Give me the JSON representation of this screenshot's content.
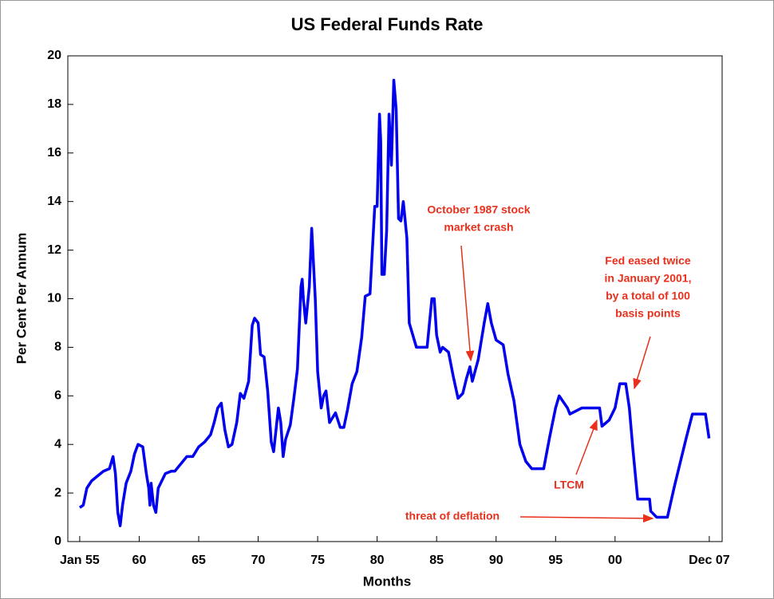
{
  "chart_data": {
    "type": "line",
    "title": "US Federal Funds Rate",
    "xlabel": "Months",
    "ylabel": "Per Cent Per Annum",
    "xlim": [
      1954,
      2009
    ],
    "xticks": [
      {
        "value": 1955,
        "label": "Jan 55"
      },
      {
        "value": 1960,
        "label": "60"
      },
      {
        "value": 1965,
        "label": "65"
      },
      {
        "value": 1970,
        "label": "70"
      },
      {
        "value": 1975,
        "label": "75"
      },
      {
        "value": 1980,
        "label": "80"
      },
      {
        "value": 1985,
        "label": "85"
      },
      {
        "value": 1990,
        "label": "90"
      },
      {
        "value": 1995,
        "label": "95"
      },
      {
        "value": 2000,
        "label": "00"
      },
      {
        "value": 2007.92,
        "label": "Dec 07"
      }
    ],
    "ylim": [
      0,
      20
    ],
    "yticks": [
      0,
      2,
      4,
      6,
      8,
      10,
      12,
      14,
      16,
      18,
      20
    ],
    "annotations": [
      {
        "lines": [
          "October 1987 stock",
          "market crash"
        ]
      },
      {
        "lines": [
          "Fed eased twice",
          "in January 2001,",
          "by a total of 100",
          "basis points"
        ]
      },
      {
        "lines": [
          "LTCM"
        ]
      },
      {
        "lines": [
          "threat of deflation"
        ]
      }
    ],
    "series": [
      {
        "name": "Federal Funds Rate",
        "color": "#0000ee",
        "x": [
          1955.0,
          1955.3,
          1955.6,
          1956.0,
          1956.5,
          1957.0,
          1957.5,
          1957.8,
          1958.0,
          1958.2,
          1958.4,
          1958.6,
          1958.9,
          1959.3,
          1959.6,
          1959.9,
          1960.3,
          1960.6,
          1960.8,
          1960.9,
          1961.0,
          1961.2,
          1961.4,
          1961.6,
          1961.9,
          1962.2,
          1962.7,
          1963.0,
          1963.5,
          1964.0,
          1964.5,
          1965.0,
          1965.5,
          1966.0,
          1966.3,
          1966.6,
          1966.9,
          1967.2,
          1967.5,
          1967.8,
          1968.2,
          1968.5,
          1968.8,
          1969.2,
          1969.5,
          1969.7,
          1970.0,
          1970.2,
          1970.5,
          1970.8,
          1971.1,
          1971.3,
          1971.7,
          1971.9,
          1972.1,
          1972.3,
          1972.7,
          1973.0,
          1973.3,
          1973.6,
          1973.7,
          1973.8,
          1974.0,
          1974.3,
          1974.5,
          1974.8,
          1975.0,
          1975.3,
          1975.5,
          1975.7,
          1976.0,
          1976.5,
          1976.9,
          1977.2,
          1977.5,
          1977.9,
          1978.3,
          1978.7,
          1979.0,
          1979.4,
          1979.8,
          1980.0,
          1980.2,
          1980.3,
          1980.4,
          1980.6,
          1980.8,
          1981.0,
          1981.2,
          1981.4,
          1981.6,
          1981.8,
          1982.0,
          1982.2,
          1982.5,
          1982.7,
          1983.0,
          1983.3,
          1984.2,
          1984.6,
          1984.8,
          1985.0,
          1985.3,
          1985.5,
          1986.0,
          1986.4,
          1986.8,
          1987.2,
          1987.5,
          1987.8,
          1988.0,
          1988.5,
          1989.0,
          1989.3,
          1989.6,
          1990.0,
          1990.6,
          1991.0,
          1991.5,
          1992.0,
          1992.5,
          1993.0,
          1994.0,
          1994.5,
          1995.0,
          1995.3,
          1996.0,
          1996.2,
          1997.2,
          1998.7,
          1998.9,
          1999.5,
          2000.0,
          2000.4,
          2000.9,
          2001.2,
          2001.5,
          2001.9,
          2002.9,
          2003.0,
          2003.5,
          2004.4,
          2005.0,
          2005.5,
          2006.0,
          2006.5,
          2007.6,
          2007.9
        ],
        "values": [
          1.4,
          1.5,
          2.2,
          2.5,
          2.7,
          2.9,
          3.0,
          3.5,
          2.8,
          1.2,
          0.65,
          1.5,
          2.4,
          2.9,
          3.6,
          4.0,
          3.9,
          2.8,
          2.2,
          1.5,
          2.4,
          1.5,
          1.2,
          2.2,
          2.5,
          2.8,
          2.9,
          2.9,
          3.2,
          3.5,
          3.5,
          3.9,
          4.1,
          4.4,
          4.9,
          5.5,
          5.7,
          4.6,
          3.9,
          4.0,
          4.9,
          6.1,
          5.9,
          6.6,
          8.9,
          9.2,
          9.0,
          7.7,
          7.6,
          6.2,
          4.1,
          3.7,
          5.5,
          4.9,
          3.5,
          4.2,
          4.8,
          5.9,
          7.1,
          10.5,
          10.8,
          10.0,
          9.0,
          10.5,
          12.9,
          10.0,
          7.0,
          5.5,
          6.0,
          6.2,
          4.9,
          5.3,
          4.7,
          4.7,
          5.4,
          6.5,
          7.0,
          8.4,
          10.1,
          10.2,
          13.8,
          13.8,
          17.6,
          16.5,
          11.0,
          11.0,
          12.8,
          17.6,
          15.5,
          19.0,
          17.8,
          13.3,
          13.2,
          14.0,
          12.5,
          9.0,
          8.5,
          8.0,
          8.0,
          10.0,
          10.0,
          8.5,
          7.8,
          8.0,
          7.8,
          6.8,
          5.9,
          6.1,
          6.7,
          7.2,
          6.6,
          7.5,
          9.0,
          9.8,
          9.0,
          8.3,
          8.1,
          6.9,
          5.8,
          4.0,
          3.3,
          3.0,
          3.0,
          4.3,
          5.5,
          6.0,
          5.5,
          5.25,
          5.5,
          5.5,
          4.75,
          5.0,
          5.5,
          6.5,
          6.5,
          5.5,
          3.8,
          1.75,
          1.75,
          1.25,
          1.0,
          1.0,
          2.3,
          3.3,
          4.3,
          5.25,
          5.25,
          4.25
        ]
      }
    ]
  }
}
